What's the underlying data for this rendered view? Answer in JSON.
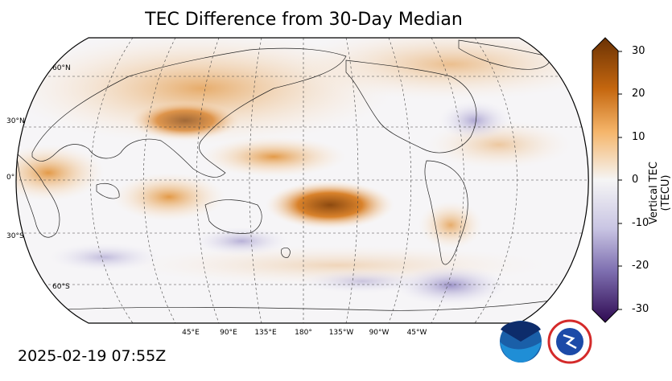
{
  "title": "TEC Difference from 30-Day Median",
  "timestamp": "2025-02-19 07:55Z",
  "lat_labels": [
    "60°N",
    "30°N",
    "0°",
    "30°S",
    "60°S"
  ],
  "lon_labels": [
    "45°E",
    "90°E",
    "135°E",
    "180°",
    "135°W",
    "90°W",
    "45°W"
  ],
  "colorbar": {
    "label": "Vertical TEC (TECU)",
    "ticks": [
      "30",
      "20",
      "10",
      "0",
      "-10",
      "-20",
      "-30"
    ],
    "colors": {
      "max": "#7a3a05",
      "high": "#e0841c",
      "mid": "#f7f7f7",
      "low": "#9b92c6",
      "min": "#2f0a52"
    }
  },
  "logos": {
    "noaa": "NOAA",
    "nws": "NATIONAL WEATHER SERVICE"
  }
}
